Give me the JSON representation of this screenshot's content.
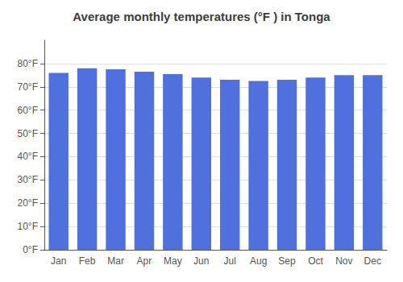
{
  "chart_data": {
    "type": "bar",
    "title": "Average monthly temperatures (°F ) in Tonga",
    "categories": [
      "Jan",
      "Feb",
      "Mar",
      "Apr",
      "May",
      "Jun",
      "Jul",
      "Aug",
      "Sep",
      "Oct",
      "Nov",
      "Dec"
    ],
    "values": [
      76,
      78,
      77.5,
      76.5,
      75.5,
      74,
      73,
      72.5,
      73,
      74,
      75,
      75
    ],
    "ylim": [
      0,
      90
    ],
    "yticks": [
      {
        "value": 0,
        "label": "0°F"
      },
      {
        "value": 10,
        "label": "10°F"
      },
      {
        "value": 20,
        "label": "20°F"
      },
      {
        "value": 30,
        "label": "30°F"
      },
      {
        "value": 40,
        "label": "40°F"
      },
      {
        "value": 50,
        "label": "50°F"
      },
      {
        "value": 60,
        "label": "60°F"
      },
      {
        "value": 70,
        "label": "70°F"
      },
      {
        "value": 80,
        "label": "80°F"
      }
    ],
    "grid": true
  }
}
